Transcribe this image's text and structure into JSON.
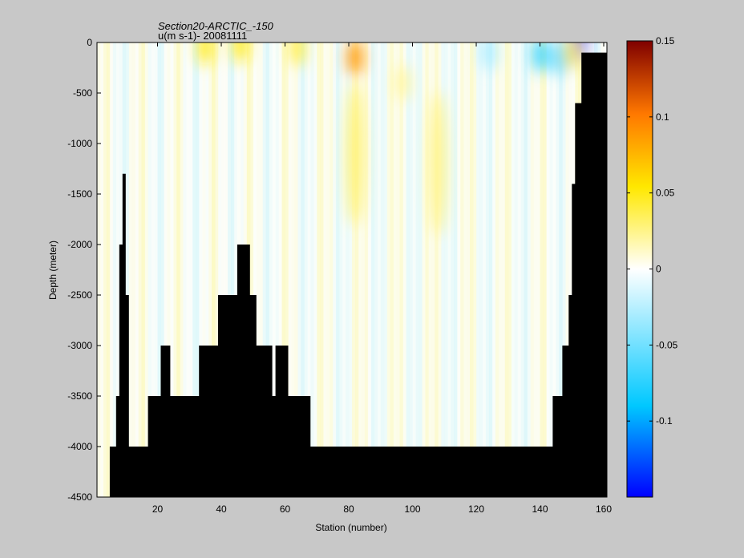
{
  "chart_data": {
    "type": "heatmap",
    "title": "Section20-ARCTIC_-150",
    "subtitle": "u(m s-1)- 20081111",
    "xlabel": "Station (number)",
    "ylabel": "Depth (meter)",
    "xlim": [
      1,
      161
    ],
    "ylim": [
      -4500,
      0
    ],
    "xticks": [
      20,
      40,
      60,
      80,
      100,
      120,
      140,
      160
    ],
    "yticks": [
      0,
      -500,
      -1000,
      -1500,
      -2000,
      -2500,
      -3000,
      -3500,
      -4000,
      -4500
    ],
    "colorbar": {
      "range": [
        -0.15,
        0.15
      ],
      "ticks": [
        0.15,
        0.1,
        0.05,
        0,
        -0.05,
        -0.1
      ],
      "colormap": "jet",
      "colors": [
        "#0000ff",
        "#00c8ff",
        "#ffffff",
        "#ffe800",
        "#ff7800",
        "#7f0000"
      ]
    },
    "bottom_color": "#000000",
    "bathymetry": [
      [
        1,
        -4500
      ],
      [
        5,
        -4000
      ],
      [
        7,
        -3500
      ],
      [
        8,
        -2000
      ],
      [
        9,
        -1300
      ],
      [
        10,
        -2500
      ],
      [
        11,
        -4000
      ],
      [
        16,
        -4000
      ],
      [
        17,
        -3500
      ],
      [
        21,
        -3000
      ],
      [
        24,
        -3500
      ],
      [
        33,
        -3000
      ],
      [
        39,
        -2500
      ],
      [
        45,
        -2000
      ],
      [
        49,
        -2500
      ],
      [
        51,
        -3000
      ],
      [
        56,
        -3500
      ],
      [
        57,
        -3000
      ],
      [
        61,
        -3500
      ],
      [
        68,
        -4000
      ],
      [
        143,
        -4000
      ],
      [
        144,
        -3500
      ],
      [
        147,
        -3000
      ],
      [
        149,
        -2500
      ],
      [
        150,
        -1400
      ],
      [
        151,
        -600
      ],
      [
        153,
        -100
      ],
      [
        161,
        0
      ]
    ],
    "features": [
      {
        "x": 35,
        "depth": -50,
        "value": 0.05
      },
      {
        "x": 46,
        "depth": -30,
        "value": 0.05
      },
      {
        "x": 64,
        "depth": -60,
        "value": 0.04
      },
      {
        "x": 82,
        "depth": -150,
        "value": 0.09
      },
      {
        "x": 82,
        "depth": -1100,
        "value": 0.03
      },
      {
        "x": 97,
        "depth": -400,
        "value": 0.02
      },
      {
        "x": 108,
        "depth": -1200,
        "value": 0.025
      },
      {
        "x": 124,
        "depth": -100,
        "value": -0.03
      },
      {
        "x": 140,
        "depth": -120,
        "value": -0.07
      },
      {
        "x": 146,
        "depth": -150,
        "value": -0.06
      },
      {
        "x": 152,
        "depth": -20,
        "value": -0.14
      },
      {
        "x": 150,
        "depth": -100,
        "value": 0.05
      }
    ]
  }
}
